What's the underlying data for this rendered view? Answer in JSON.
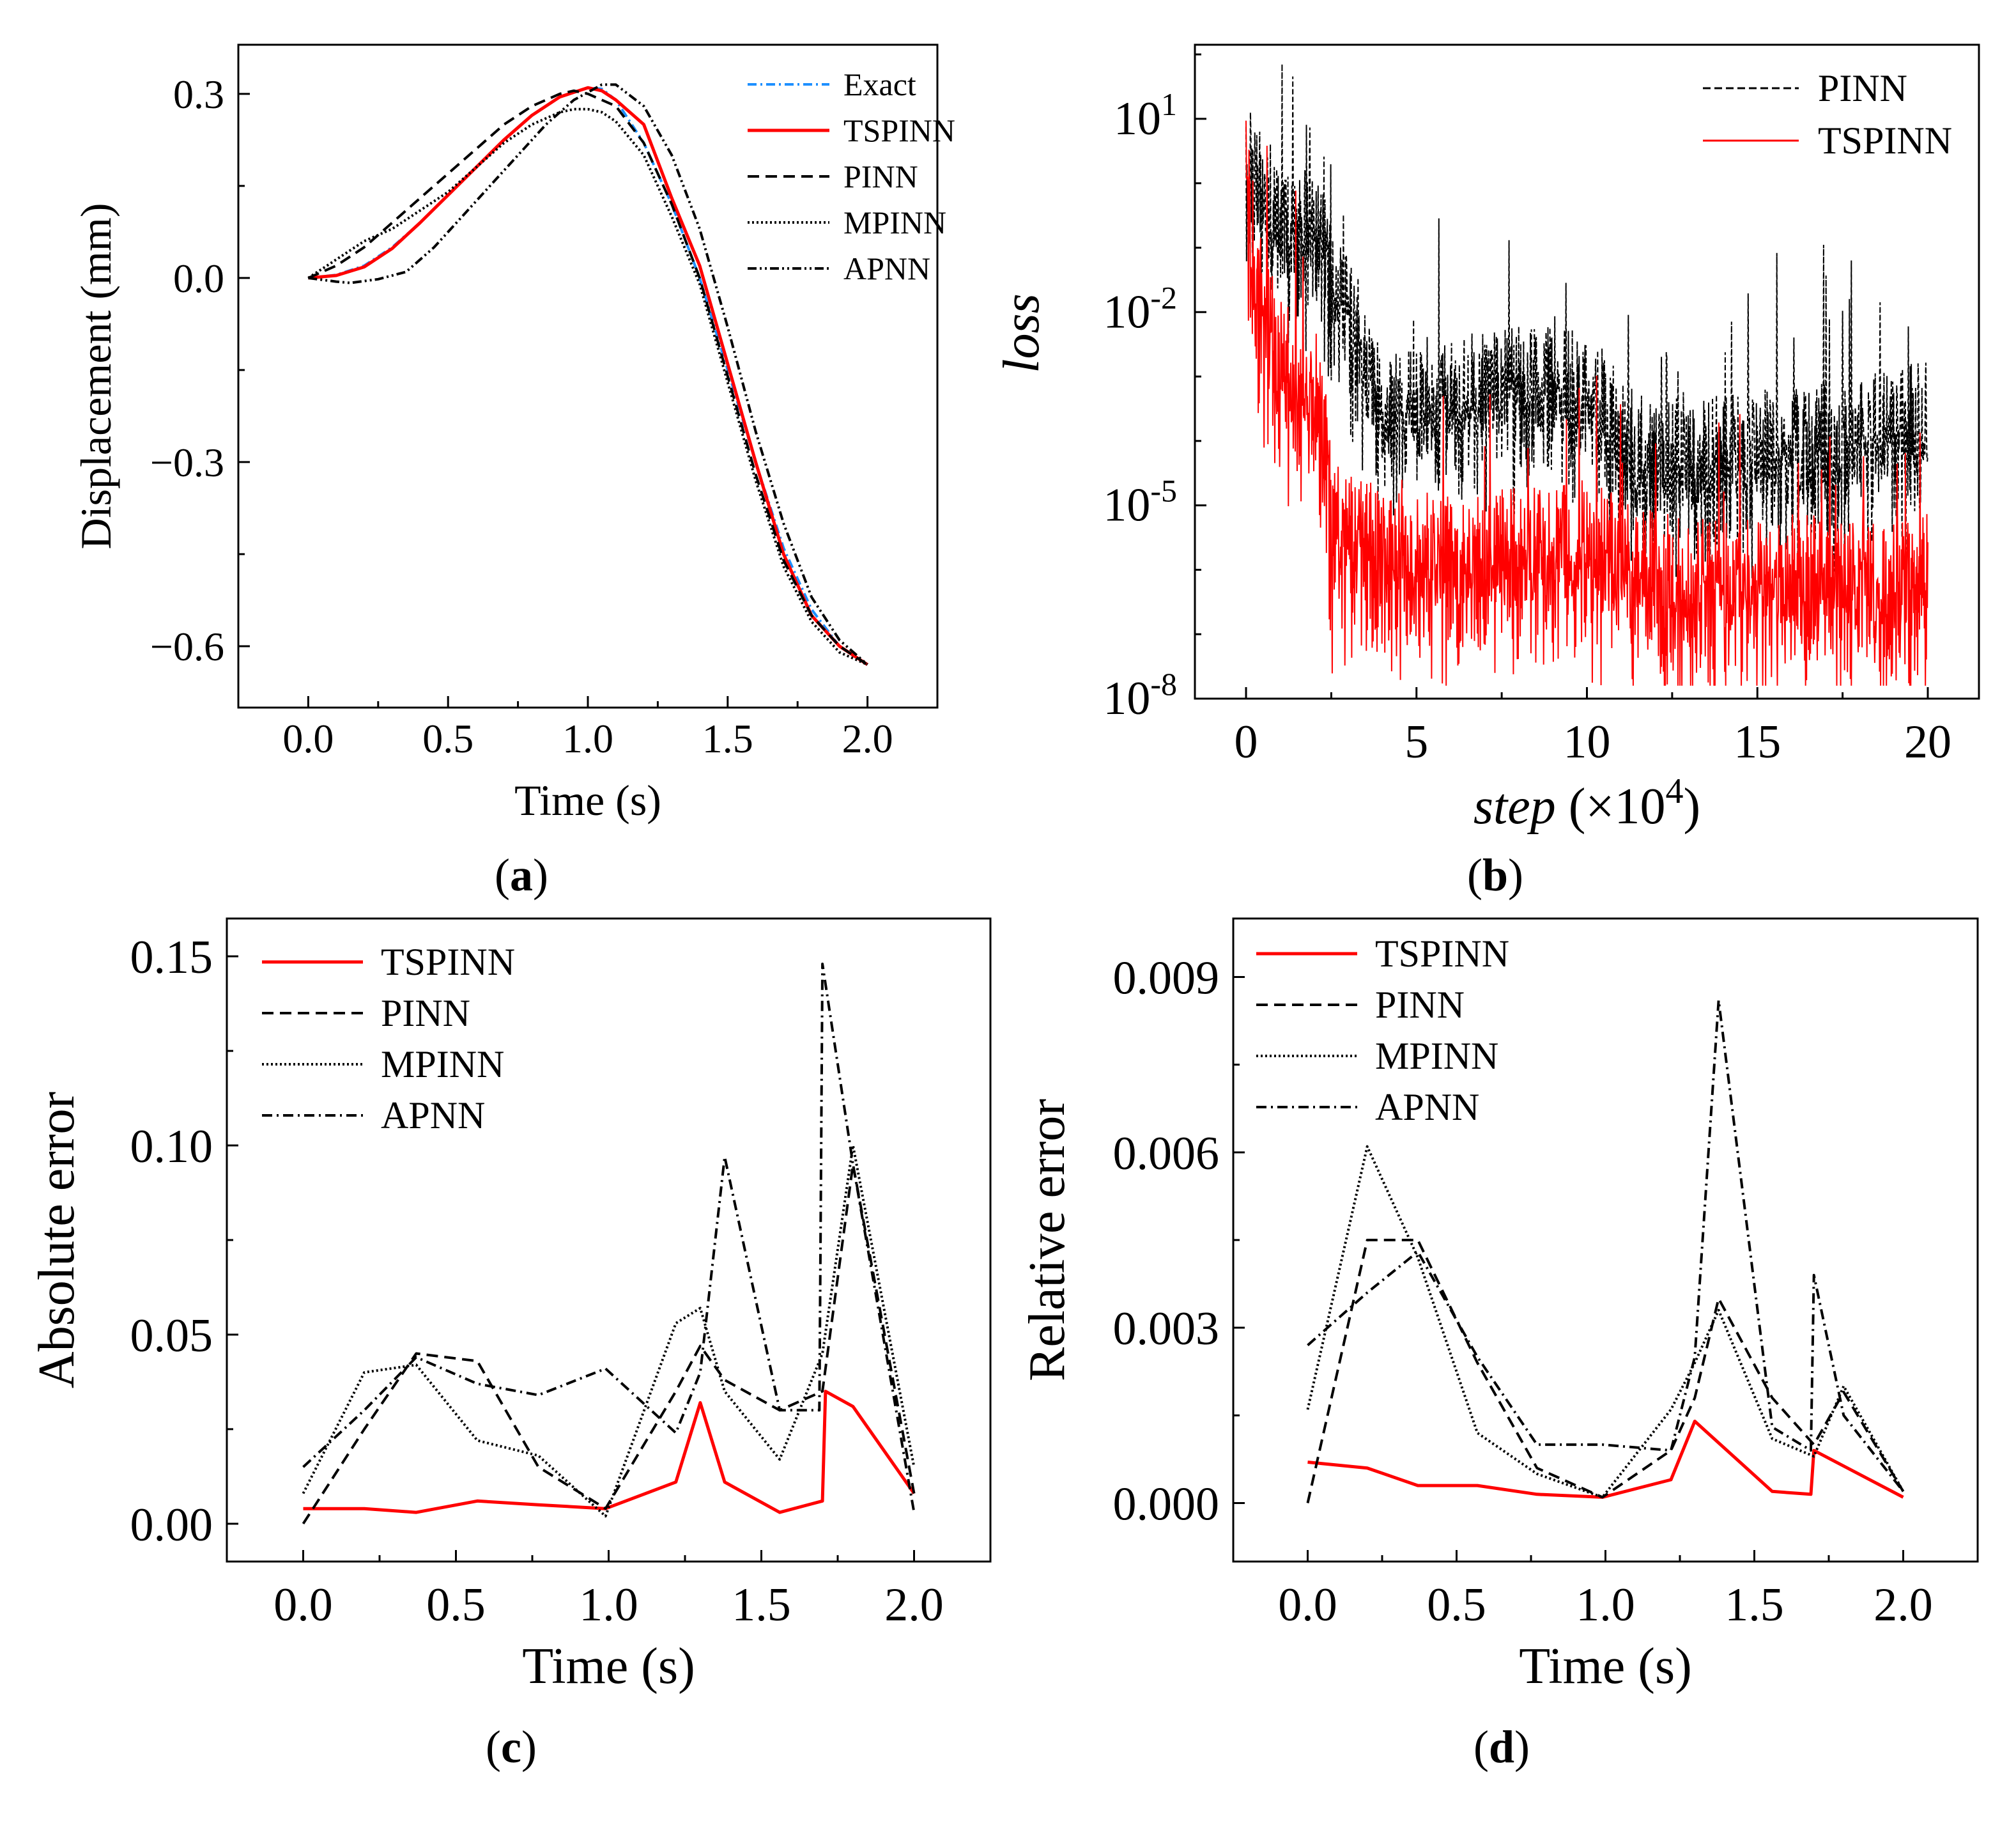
{
  "colors": {
    "tspinn": "#ff0000",
    "exact": "#1e90ff",
    "black": "#000000"
  },
  "chart_data": [
    {
      "id": "a",
      "type": "line",
      "panel_label": "a",
      "xlabel": "Time (s)",
      "ylabel": "Displacement (mm)",
      "xlim": [
        -0.25,
        2.25
      ],
      "ylim": [
        -0.7,
        0.38
      ],
      "xticks": [
        0.0,
        0.5,
        1.0,
        1.5,
        2.0
      ],
      "xtick_labels": [
        "0.0",
        "0.5",
        "1.0",
        "1.5",
        "2.0"
      ],
      "yticks": [
        -0.6,
        -0.3,
        0.0,
        0.3
      ],
      "ytick_labels": [
        "−0.6",
        "−0.3",
        "0.0",
        "0.3"
      ],
      "legend": [
        "Exact",
        "TSPINN",
        "PINN",
        "MPINN",
        "APNN"
      ],
      "legend_position": "top-right",
      "series": [
        {
          "name": "Exact",
          "style": "exact",
          "x": [
            0,
            0.1,
            0.2,
            0.3,
            0.4,
            0.5,
            0.6,
            0.7,
            0.8,
            0.9,
            1.0,
            1.05,
            1.1,
            1.2,
            1.3,
            1.4,
            1.5,
            1.6,
            1.7,
            1.8,
            1.9,
            2.0
          ],
          "y": [
            0,
            0.005,
            0.02,
            0.05,
            0.09,
            0.135,
            0.18,
            0.225,
            0.265,
            0.295,
            0.31,
            0.308,
            0.29,
            0.22,
            0.12,
            0.0,
            -0.15,
            -0.3,
            -0.44,
            -0.54,
            -0.6,
            -0.63
          ]
        },
        {
          "name": "TSPINN",
          "style": "tspinn",
          "x": [
            0,
            0.1,
            0.2,
            0.3,
            0.4,
            0.5,
            0.6,
            0.7,
            0.8,
            0.9,
            1.0,
            1.05,
            1.1,
            1.2,
            1.3,
            1.4,
            1.5,
            1.6,
            1.7,
            1.8,
            1.9,
            2.0
          ],
          "y": [
            0,
            0.004,
            0.018,
            0.048,
            0.09,
            0.135,
            0.18,
            0.225,
            0.265,
            0.295,
            0.31,
            0.305,
            0.29,
            0.25,
            0.13,
            0.02,
            -0.14,
            -0.3,
            -0.45,
            -0.55,
            -0.6,
            -0.63
          ]
        },
        {
          "name": "PINN",
          "style": "dash",
          "x": [
            0,
            0.1,
            0.2,
            0.3,
            0.4,
            0.5,
            0.6,
            0.7,
            0.8,
            0.9,
            0.95,
            1.0,
            1.1,
            1.2,
            1.3,
            1.4,
            1.5,
            1.6,
            1.7,
            1.8,
            1.9,
            2.0
          ],
          "y": [
            0,
            0.02,
            0.05,
            0.09,
            0.13,
            0.17,
            0.21,
            0.25,
            0.28,
            0.3,
            0.305,
            0.3,
            0.28,
            0.22,
            0.12,
            0.0,
            -0.16,
            -0.32,
            -0.46,
            -0.55,
            -0.6,
            -0.63
          ]
        },
        {
          "name": "MPINN",
          "style": "dot",
          "x": [
            0,
            0.1,
            0.2,
            0.3,
            0.4,
            0.5,
            0.6,
            0.7,
            0.8,
            0.9,
            0.95,
            1.0,
            1.05,
            1.1,
            1.2,
            1.3,
            1.4,
            1.5,
            1.6,
            1.7,
            1.8,
            1.9,
            2.0
          ],
          "y": [
            0,
            0.03,
            0.06,
            0.08,
            0.11,
            0.14,
            0.18,
            0.22,
            0.25,
            0.27,
            0.275,
            0.275,
            0.27,
            0.255,
            0.2,
            0.1,
            -0.01,
            -0.17,
            -0.33,
            -0.47,
            -0.56,
            -0.61,
            -0.63
          ]
        },
        {
          "name": "APNN",
          "style": "dashdotdot",
          "x": [
            0,
            0.1,
            0.15,
            0.25,
            0.35,
            0.45,
            0.55,
            0.65,
            0.75,
            0.85,
            0.95,
            1.05,
            1.1,
            1.2,
            1.3,
            1.4,
            1.5,
            1.6,
            1.7,
            1.8,
            1.9,
            2.0
          ],
          "y": [
            0,
            -0.006,
            -0.008,
            -0.002,
            0.01,
            0.05,
            0.1,
            0.15,
            0.2,
            0.25,
            0.29,
            0.315,
            0.315,
            0.28,
            0.2,
            0.08,
            -0.08,
            -0.25,
            -0.4,
            -0.52,
            -0.59,
            -0.63
          ]
        }
      ]
    },
    {
      "id": "b",
      "type": "line",
      "panel_label": "b",
      "xlabel": "step",
      "xlabel_suffix": " (×10",
      "xlabel_exp": "4",
      "xlabel_close": ")",
      "ylabel": "loss",
      "xlim": [
        -1.5,
        21.5
      ],
      "ylim_log10": [
        -8,
        2.15
      ],
      "xticks": [
        0,
        5,
        10,
        15,
        20
      ],
      "xtick_labels": [
        "0",
        "5",
        "10",
        "15",
        "20"
      ],
      "yticks_log10": [
        -8,
        -5,
        -2,
        1
      ],
      "ytick_base": "10",
      "ytick_exps": [
        "-8",
        "-5",
        "-2",
        "1"
      ],
      "legend": [
        "PINN",
        "TSPINN"
      ],
      "legend_position": "top-right",
      "series": [
        {
          "name": "PINN",
          "style": "dash",
          "description": "noisy loss history",
          "x_range": [
            0,
            20
          ],
          "log10_envelope": [
            [
              0,
              0.5
            ],
            [
              1,
              -0.4
            ],
            [
              2,
              -0.6
            ],
            [
              2.5,
              -1.2
            ],
            [
              3.5,
              -2.5
            ],
            [
              4,
              -3.5
            ],
            [
              5,
              -3.2
            ],
            [
              8,
              -3.0
            ],
            [
              10,
              -3.0
            ],
            [
              11,
              -3.8
            ],
            [
              12,
              -4.2
            ],
            [
              14,
              -4.0
            ],
            [
              16,
              -4.0
            ],
            [
              18,
              -3.8
            ],
            [
              20,
              -3.5
            ]
          ]
        },
        {
          "name": "TSPINN",
          "style": "tspinn",
          "description": "noisy loss history",
          "x_range": [
            0,
            20
          ],
          "log10_envelope": [
            [
              0,
              0.5
            ],
            [
              0.3,
              -1.5
            ],
            [
              1,
              -2.6
            ],
            [
              2,
              -3.0
            ],
            [
              2.4,
              -4.0
            ],
            [
              2.5,
              -5.3
            ],
            [
              5,
              -5.7
            ],
            [
              8,
              -5.6
            ],
            [
              10,
              -5.5
            ],
            [
              12,
              -6.0
            ],
            [
              14,
              -6.1
            ],
            [
              16,
              -6.0
            ],
            [
              18,
              -6.0
            ],
            [
              20,
              -6.0
            ]
          ]
        }
      ]
    },
    {
      "id": "c",
      "type": "line",
      "panel_label": "c",
      "xlabel": "Time (s)",
      "ylabel": "Absolute error",
      "xlim": [
        -0.25,
        2.25
      ],
      "ylim": [
        -0.01,
        0.16
      ],
      "xticks": [
        0.0,
        0.5,
        1.0,
        1.5,
        2.0
      ],
      "xtick_labels": [
        "0.0",
        "0.5",
        "1.0",
        "1.5",
        "2.0"
      ],
      "yticks": [
        0.0,
        0.05,
        0.1,
        0.15
      ],
      "ytick_labels": [
        "0.00",
        "0.05",
        "0.10",
        "0.15"
      ],
      "legend": [
        "TSPINN",
        "PINN",
        "MPINN",
        "APNN"
      ],
      "legend_position": "top-left",
      "series": [
        {
          "name": "TSPINN",
          "style": "tspinn",
          "x": [
            0,
            0.2,
            0.37,
            0.57,
            0.77,
            0.99,
            1.22,
            1.3,
            1.38,
            1.56,
            1.7,
            1.71,
            1.8,
            2.0
          ],
          "y": [
            0.004,
            0.004,
            0.003,
            0.006,
            0.005,
            0.004,
            0.011,
            0.032,
            0.011,
            0.003,
            0.006,
            0.035,
            0.031,
            0.008
          ]
        },
        {
          "name": "PINN",
          "style": "dash",
          "x": [
            0,
            0.2,
            0.37,
            0.57,
            0.77,
            0.99,
            1.22,
            1.3,
            1.38,
            1.56,
            1.7,
            1.8,
            2.0
          ],
          "y": [
            0.0,
            0.025,
            0.045,
            0.043,
            0.015,
            0.004,
            0.035,
            0.047,
            0.038,
            0.03,
            0.035,
            0.095,
            0.008
          ]
        },
        {
          "name": "MPINN",
          "style": "dot",
          "x": [
            0,
            0.2,
            0.37,
            0.57,
            0.77,
            0.99,
            1.22,
            1.3,
            1.38,
            1.56,
            1.7,
            1.8,
            2.0
          ],
          "y": [
            0.008,
            0.04,
            0.042,
            0.022,
            0.018,
            0.002,
            0.053,
            0.057,
            0.035,
            0.017,
            0.045,
            0.1,
            0.015
          ]
        },
        {
          "name": "APNN",
          "style": "dashdot",
          "x": [
            0,
            0.2,
            0.37,
            0.57,
            0.77,
            0.99,
            1.22,
            1.3,
            1.38,
            1.56,
            1.69,
            1.7,
            1.8,
            2.0
          ],
          "y": [
            0.015,
            0.03,
            0.044,
            0.037,
            0.034,
            0.041,
            0.024,
            0.04,
            0.097,
            0.03,
            0.03,
            0.148,
            0.095,
            0.003
          ]
        }
      ]
    },
    {
      "id": "d",
      "type": "line",
      "panel_label": "d",
      "xlabel": "Time (s)",
      "ylabel": "Relative error",
      "xlim": [
        -0.25,
        2.25
      ],
      "ylim": [
        -0.001,
        0.01
      ],
      "xticks": [
        0.0,
        0.5,
        1.0,
        1.5,
        2.0
      ],
      "xtick_labels": [
        "0.0",
        "0.5",
        "1.0",
        "1.5",
        "2.0"
      ],
      "yticks": [
        0.0,
        0.003,
        0.006,
        0.009
      ],
      "ytick_labels": [
        "0.000",
        "0.003",
        "0.006",
        "0.009"
      ],
      "legend": [
        "TSPINN",
        "PINN",
        "MPINN",
        "APNN"
      ],
      "legend_position": "top-left",
      "series": [
        {
          "name": "TSPINN",
          "style": "tspinn",
          "x": [
            0,
            0.2,
            0.37,
            0.57,
            0.77,
            0.99,
            1.22,
            1.3,
            1.56,
            1.69,
            1.7,
            2.0
          ],
          "y": [
            0.0007,
            0.0006,
            0.0003,
            0.0003,
            0.00015,
            0.0001,
            0.0004,
            0.0014,
            0.0002,
            0.00015,
            0.0009,
            0.0001
          ]
        },
        {
          "name": "PINN",
          "style": "dash",
          "x": [
            0,
            0.2,
            0.37,
            0.57,
            0.77,
            0.99,
            1.22,
            1.3,
            1.38,
            1.56,
            1.7,
            1.8,
            2.0
          ],
          "y": [
            0.0,
            0.0045,
            0.0045,
            0.0024,
            0.0006,
            0.0001,
            0.0009,
            0.0018,
            0.0035,
            0.0018,
            0.001,
            0.0019,
            0.0002
          ]
        },
        {
          "name": "MPINN",
          "style": "dot",
          "x": [
            0,
            0.2,
            0.37,
            0.57,
            0.77,
            0.99,
            1.22,
            1.3,
            1.38,
            1.56,
            1.7,
            1.8,
            2.0
          ],
          "y": [
            0.0016,
            0.0061,
            0.0042,
            0.0012,
            0.0005,
            0.0001,
            0.0016,
            0.0024,
            0.0033,
            0.0011,
            0.0008,
            0.002,
            0.0002
          ]
        },
        {
          "name": "APNN",
          "style": "dashdot",
          "x": [
            0,
            0.2,
            0.37,
            0.57,
            0.77,
            0.99,
            1.22,
            1.3,
            1.38,
            1.56,
            1.69,
            1.7,
            1.8,
            2.0
          ],
          "y": [
            0.0027,
            0.0036,
            0.0043,
            0.0025,
            0.001,
            0.001,
            0.0009,
            0.0025,
            0.0086,
            0.0013,
            0.0009,
            0.0039,
            0.0015,
            0.0002
          ]
        }
      ]
    }
  ]
}
